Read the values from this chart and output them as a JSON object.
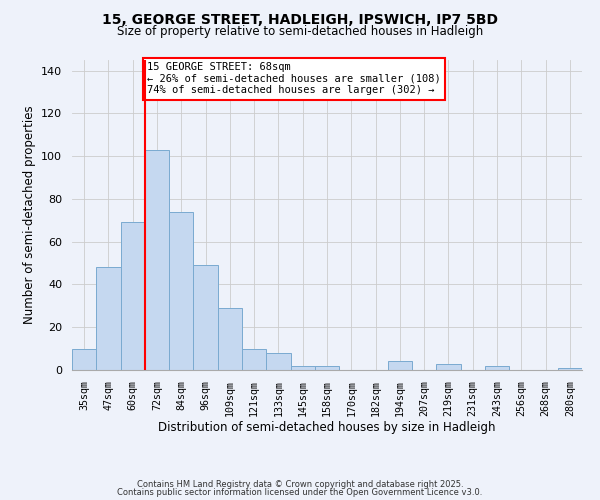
{
  "title": "15, GEORGE STREET, HADLEIGH, IPSWICH, IP7 5BD",
  "subtitle": "Size of property relative to semi-detached houses in Hadleigh",
  "xlabel": "Distribution of semi-detached houses by size in Hadleigh",
  "ylabel": "Number of semi-detached properties",
  "bins": [
    "35sqm",
    "47sqm",
    "60sqm",
    "72sqm",
    "84sqm",
    "96sqm",
    "109sqm",
    "121sqm",
    "133sqm",
    "145sqm",
    "158sqm",
    "170sqm",
    "182sqm",
    "194sqm",
    "207sqm",
    "219sqm",
    "231sqm",
    "243sqm",
    "256sqm",
    "268sqm",
    "280sqm"
  ],
  "values": [
    10,
    48,
    69,
    103,
    74,
    49,
    29,
    10,
    8,
    2,
    2,
    0,
    0,
    4,
    0,
    3,
    0,
    2,
    0,
    0,
    1
  ],
  "bar_color": "#c5d8f0",
  "bar_edge_color": "#7aaad0",
  "ylim": [
    0,
    145
  ],
  "yticks": [
    0,
    20,
    40,
    60,
    80,
    100,
    120,
    140
  ],
  "annotation_title": "15 GEORGE STREET: 68sqm",
  "annotation_line1": "← 26% of semi-detached houses are smaller (108)",
  "annotation_line2": "74% of semi-detached houses are larger (302) →",
  "footer1": "Contains HM Land Registry data © Crown copyright and database right 2025.",
  "footer2": "Contains public sector information licensed under the Open Government Licence v3.0.",
  "bg_color": "#eef2fa"
}
